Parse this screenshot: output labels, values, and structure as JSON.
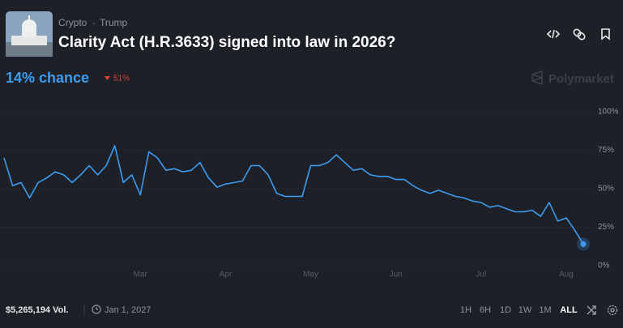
{
  "header": {
    "tags": [
      "Crypto",
      "Trump"
    ],
    "title": "Clarity Act (H.R.3633) signed into law in 2026?"
  },
  "chance": {
    "label": "14% chance",
    "change": "51%"
  },
  "brand": "Polymarket",
  "chart_data": {
    "type": "line",
    "color": "#3b9cf2",
    "grid": true,
    "categories": [
      null,
      null,
      null,
      null,
      null,
      null,
      null,
      null,
      null,
      null,
      null,
      null,
      null,
      null,
      null,
      null,
      "Mar",
      null,
      null,
      null,
      null,
      null,
      null,
      null,
      null,
      null,
      "Apr",
      null,
      null,
      null,
      null,
      null,
      null,
      null,
      null,
      null,
      "May",
      null,
      null,
      null,
      null,
      null,
      null,
      null,
      null,
      null,
      "Jun",
      null,
      null,
      null,
      null,
      null,
      null,
      null,
      null,
      null,
      "Jul",
      null,
      null,
      null,
      null,
      null,
      null,
      null,
      null,
      null,
      "Aug",
      null,
      null
    ],
    "values": [
      70,
      52,
      54,
      44,
      54,
      57,
      61,
      59,
      54,
      59,
      65,
      59,
      65,
      78,
      54,
      59,
      46,
      74,
      70,
      62,
      63,
      61,
      62,
      67,
      57,
      51,
      53,
      54,
      55,
      65,
      65,
      59,
      47,
      45,
      45,
      45,
      65,
      65,
      67,
      72,
      67,
      62,
      63,
      59,
      58,
      58,
      56,
      56,
      52,
      49,
      47,
      49,
      47,
      45,
      44,
      42,
      41,
      38,
      39,
      37,
      35,
      35,
      36,
      32,
      41,
      29,
      31,
      23,
      14
    ],
    "ylim": [
      0,
      100
    ],
    "yticks": [
      {
        "value": 0,
        "label": "0%"
      },
      {
        "value": 25,
        "label": "25%"
      },
      {
        "value": 50,
        "label": "50%"
      },
      {
        "value": 75,
        "label": "75%"
      },
      {
        "value": 100,
        "label": "100%"
      }
    ]
  },
  "footer": {
    "volume": "$5,265,194 Vol.",
    "end_date": "Jan 1, 2027",
    "ranges": [
      "1H",
      "6H",
      "1D",
      "1W",
      "1M",
      "ALL"
    ]
  }
}
